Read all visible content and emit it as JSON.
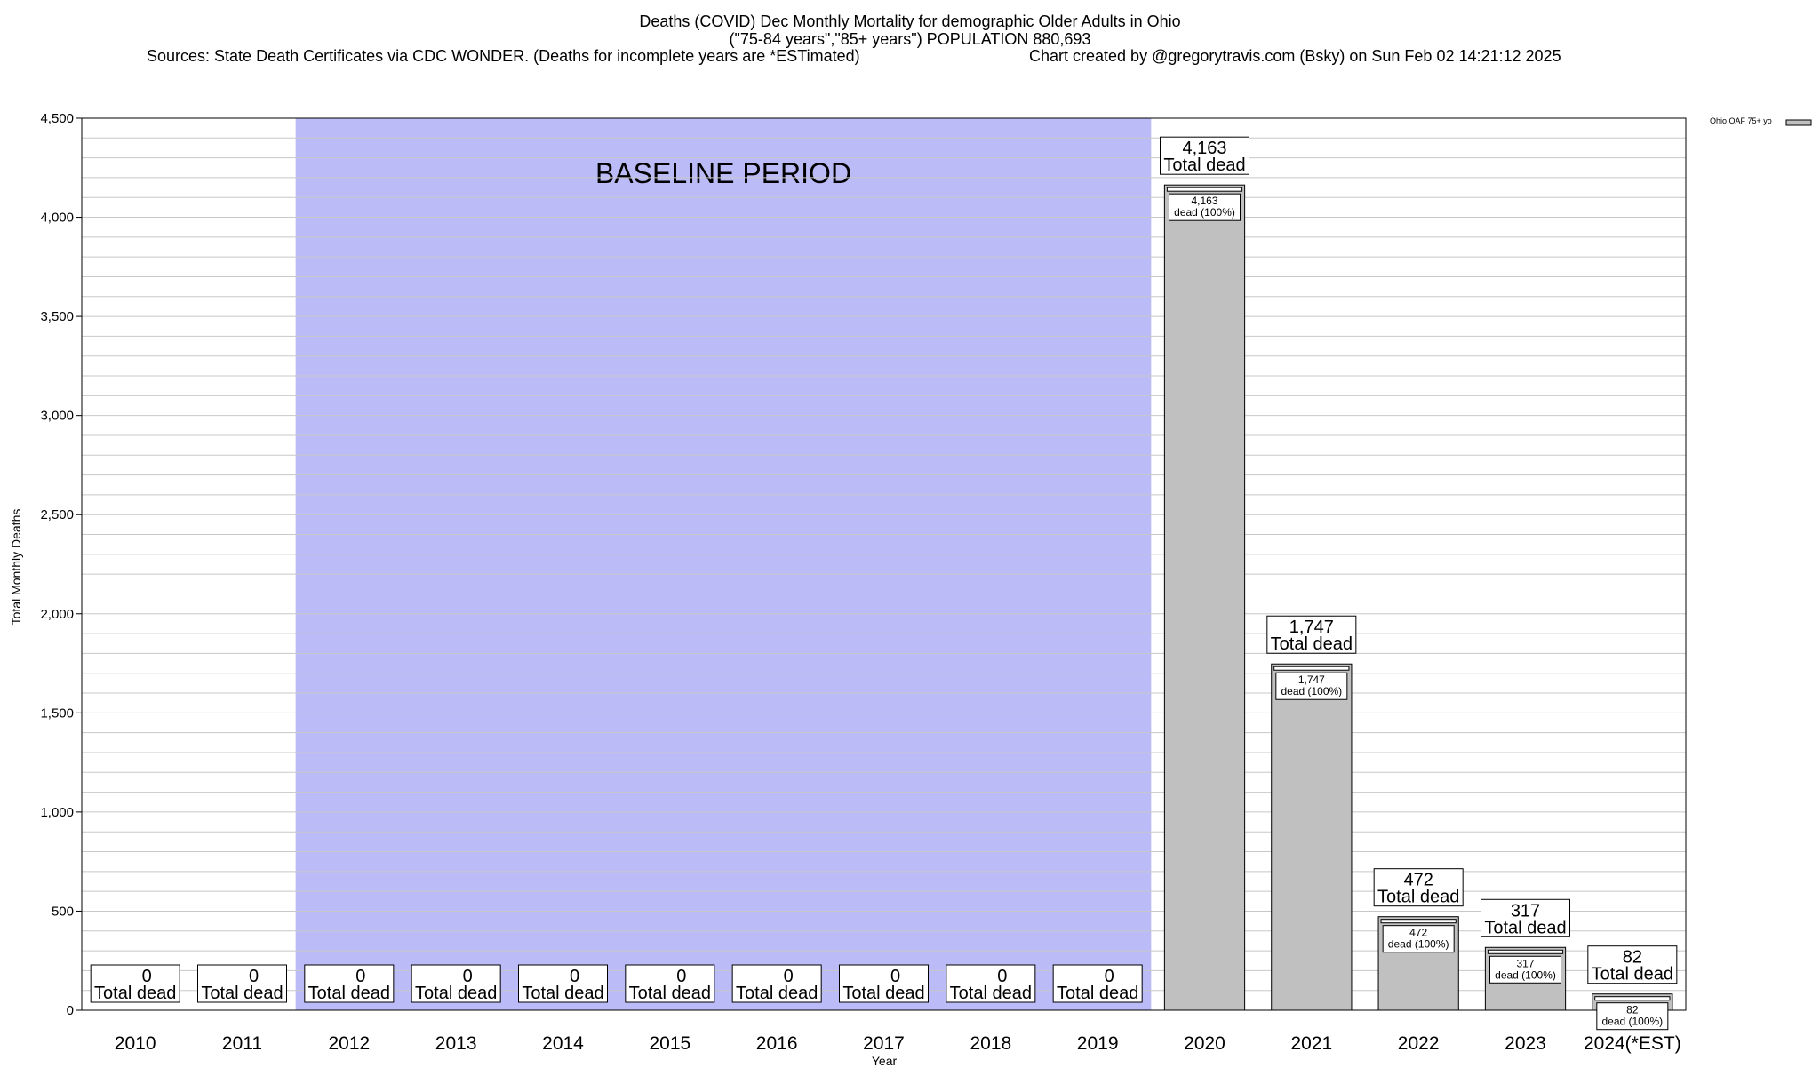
{
  "title": {
    "line1": "Deaths (COVID) Dec Monthly Mortality for demographic Older Adults in Ohio",
    "line2": "(\"75-84 years\",\"85+ years\") POPULATION 880,693",
    "sources": "Sources: State Death Certificates via CDC WONDER. (Deaths for incomplete years are *ESTimated)",
    "credit": "Chart created by @gregorytravis.com (Bsky) on Sun Feb 02 14:21:12 2025"
  },
  "chart_data": {
    "type": "bar",
    "categories": [
      "2010",
      "2011",
      "2012",
      "2013",
      "2014",
      "2015",
      "2016",
      "2017",
      "2018",
      "2019",
      "2020",
      "2021",
      "2022",
      "2023",
      "2024(*EST)"
    ],
    "series": [
      {
        "name": "Ohio OAF 75+ yo",
        "values": [
          0,
          0,
          0,
          0,
          0,
          0,
          0,
          0,
          0,
          0,
          4163,
          1747,
          472,
          317,
          82
        ],
        "value_labels": [
          "0",
          "0",
          "0",
          "0",
          "0",
          "0",
          "0",
          "0",
          "0",
          "0",
          "4,163",
          "1,747",
          "472",
          "317",
          "82"
        ]
      }
    ],
    "bar_label_suffix": "Total dead",
    "inner_label_suffix": "dead (100%)",
    "xlabel": "Year",
    "ylabel": "Total Monthly Deaths",
    "ylim": [
      0,
      4500
    ],
    "yticks": [
      0,
      500,
      1000,
      1500,
      2000,
      2500,
      3000,
      3500,
      4000,
      4500
    ],
    "ytick_labels": [
      "0",
      "500",
      "1,000",
      "1,500",
      "2,000",
      "2,500",
      "3,000",
      "3,500",
      "4,000",
      "4,500"
    ],
    "minor_grid_step": 100,
    "grid": true,
    "legend_position": "top-right",
    "baseline_period": {
      "label": "BASELINE PERIOD",
      "from": "2012",
      "to": "2019"
    },
    "colors": {
      "bar": "#c0c0c0",
      "baseline": "#bbbbf8",
      "grid": "#c8c8c8"
    }
  }
}
